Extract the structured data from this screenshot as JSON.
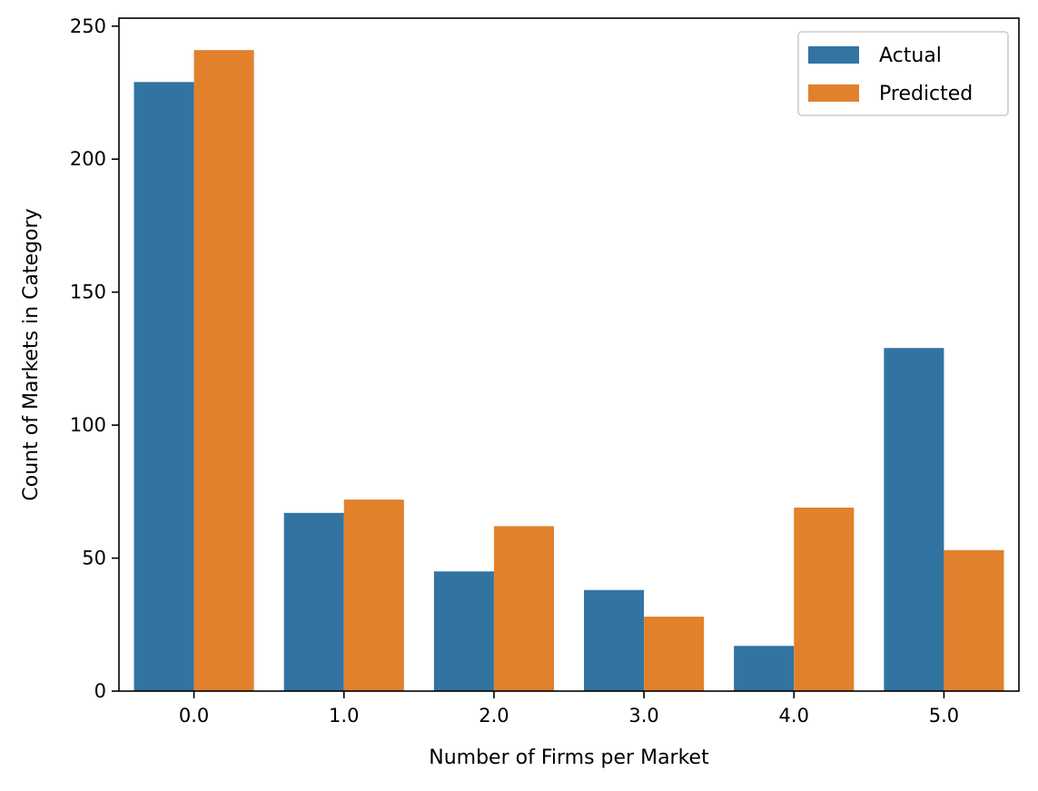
{
  "chart_data": {
    "type": "bar",
    "title": "",
    "xlabel": "Number of Firms per Market",
    "ylabel": "Count of Markets in Category",
    "categories": [
      "0.0",
      "1.0",
      "2.0",
      "3.0",
      "4.0",
      "5.0"
    ],
    "series": [
      {
        "name": "Actual",
        "color": "#3274a1",
        "values": [
          229,
          67,
          45,
          38,
          17,
          129
        ]
      },
      {
        "name": "Predicted",
        "color": "#e1812c",
        "values": [
          241,
          72,
          62,
          28,
          69,
          53
        ]
      }
    ],
    "ylim": [
      0,
      253
    ],
    "yticks": [
      0,
      50,
      100,
      150,
      200,
      250
    ],
    "grid": false,
    "legend_position": "top-right"
  }
}
